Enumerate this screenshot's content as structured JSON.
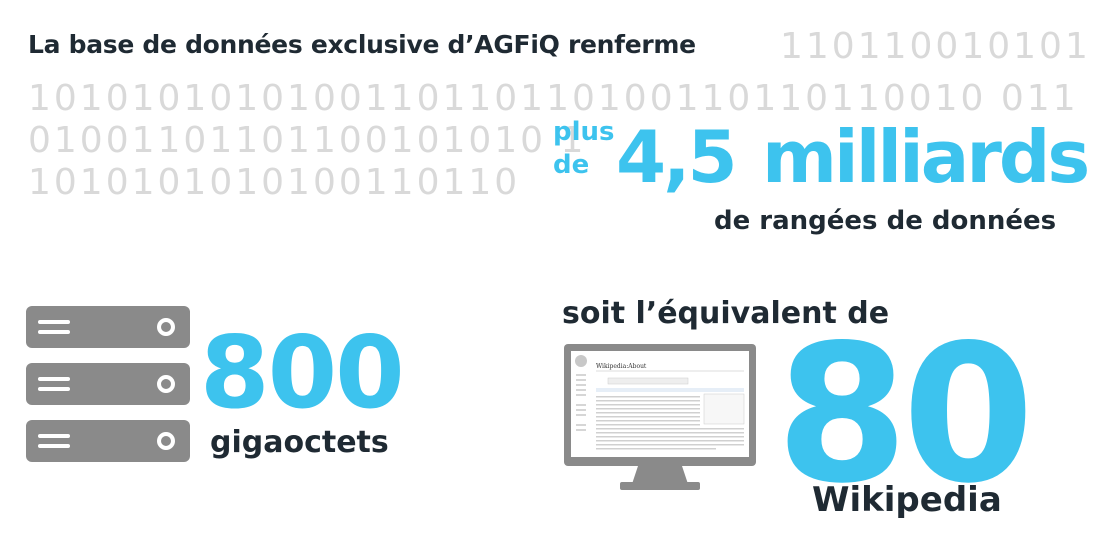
{
  "headline": "La base de données exclusive d’AGFiQ renferme",
  "binary": {
    "row0": "110110010101",
    "row1": "1010101010100110110110100110110110010 011",
    "row2": "01001101101100101010 1",
    "row3": "1010101010100110110"
  },
  "rows_stat": {
    "prefix_line1": "plus",
    "prefix_line2": "de",
    "number": "4,5",
    "unit": "milliards",
    "label": "de rangées de données"
  },
  "storage_stat": {
    "value": "800",
    "label": "gigaoctets",
    "icon": "server-icon"
  },
  "equivalent_stat": {
    "intro": "soit l’équivalent de",
    "value": "80",
    "label": "Wikipedia",
    "icon": "computer-monitor-icon"
  },
  "screen": {
    "page_title": "Wikipedia:About"
  },
  "colors": {
    "accent": "#3dc3ee",
    "text": "#1f2a33",
    "binary": "#d9d9d9",
    "icon": "#8a8a8a"
  }
}
